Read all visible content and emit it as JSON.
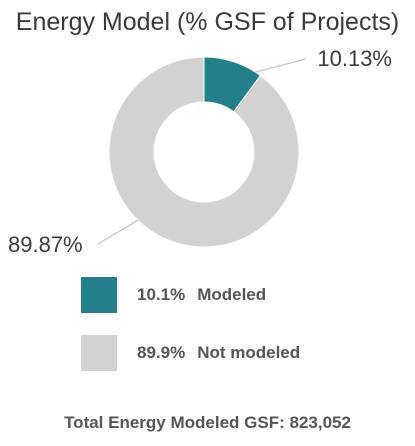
{
  "chart_data": {
    "type": "pie",
    "title": "Energy Model (% GSF of Projects)",
    "slices": [
      {
        "label": "Modeled",
        "value": 10.13,
        "data_label": "10.13%",
        "legend_pct": "10.1%",
        "color": "#23808a"
      },
      {
        "label": "Not modeled",
        "value": 89.87,
        "data_label": "89.87%",
        "legend_pct": "89.9%",
        "color": "#d2d2d2"
      }
    ],
    "legend_placement": "bottom",
    "footer": "Total Energy Modeled GSF: 823,052"
  }
}
